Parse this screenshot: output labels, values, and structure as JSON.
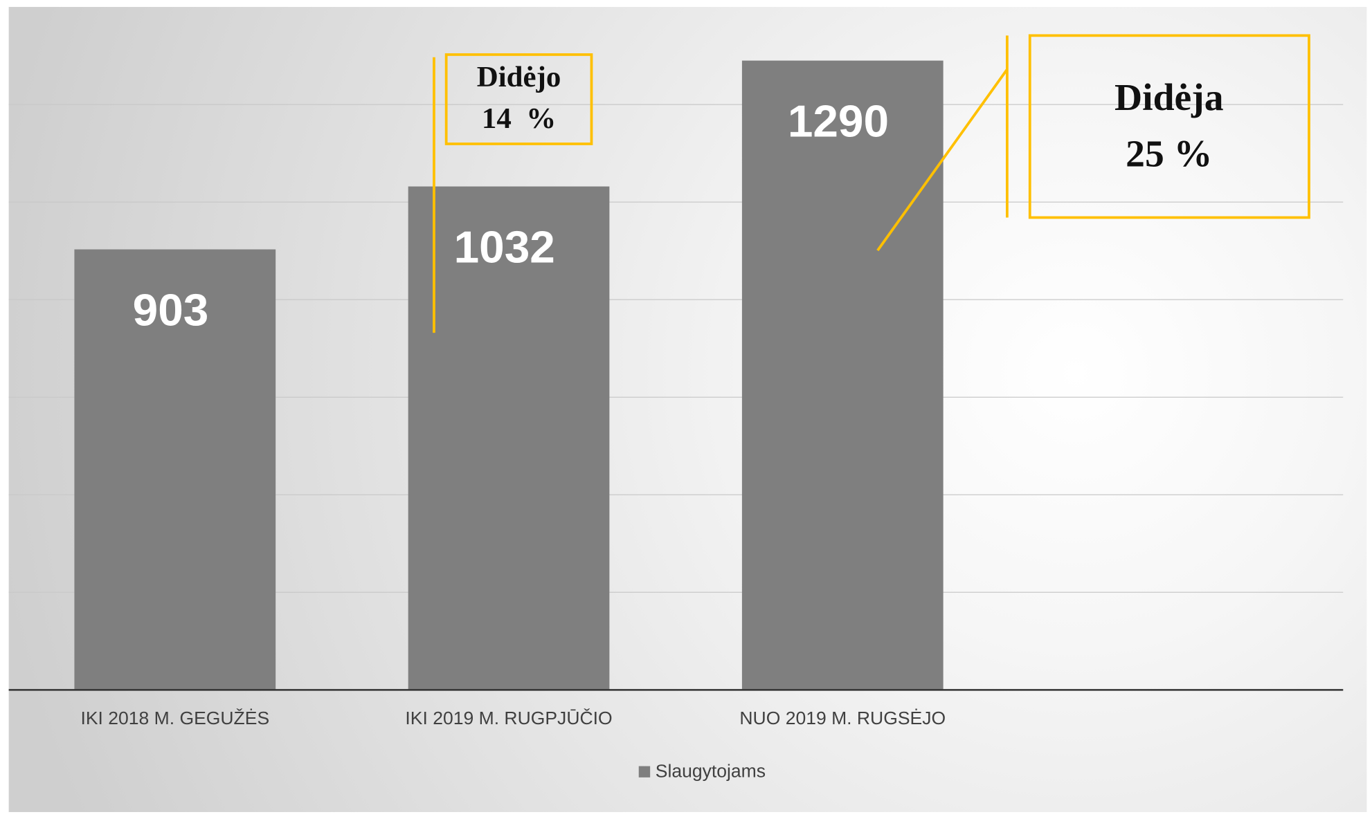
{
  "chart_data": {
    "type": "bar",
    "categories": [
      "IKI 2018 M. GEGUŽĖS",
      "IKI 2019 M. RUGPJŪČIO",
      "NUO 2019 M. RUGSĖJO"
    ],
    "series": [
      {
        "name": "Slaugytojams",
        "color": "#7f7f7f",
        "values": [
          903,
          1032,
          1290
        ]
      }
    ],
    "ylim": [
      0,
      1400
    ],
    "yticks": [
      0,
      200,
      400,
      600,
      800,
      1000,
      1200
    ],
    "grid": true,
    "legend": "bottom",
    "annotations": [
      {
        "lines": [
          "Didėjo",
          "14  %"
        ]
      },
      {
        "lines": [
          "Didėja",
          "25 %"
        ]
      }
    ],
    "annotation_color": "#ffc000"
  }
}
